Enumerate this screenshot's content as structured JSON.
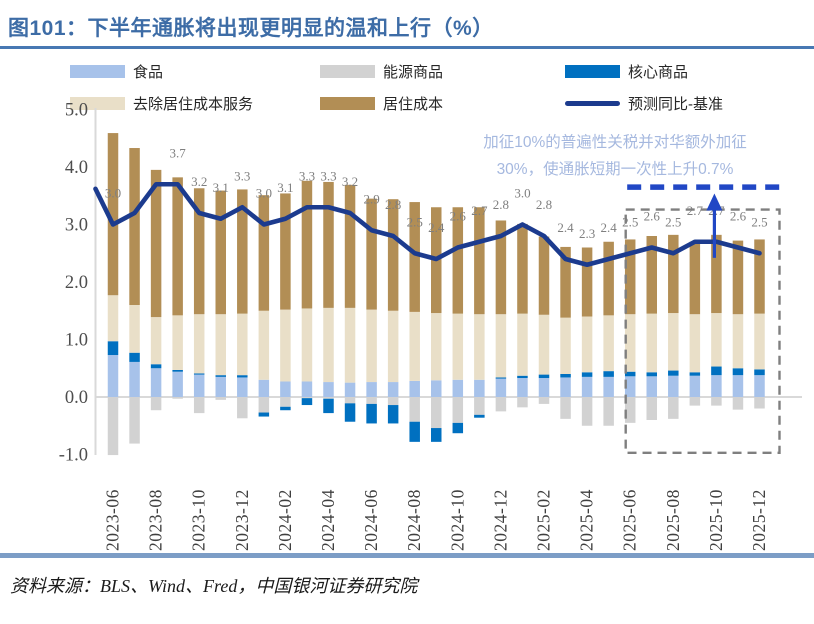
{
  "page": {
    "title": "图101：下半年通胀将出现更明显的温和上行（%）",
    "source": "资料来源：BLS、Wind、Fred，中国银河证券研究院"
  },
  "colors": {
    "title": "#3D6CA6",
    "title_rule": "#4778B3",
    "bottom_band": "#7C9DC6",
    "annotation_text": "#A5B8DF",
    "axis_gray": "#D9D9D9",
    "y_tick_text": "#4D4D4D",
    "x_tick_text": "#3F3F3F",
    "data_label": "#7F7F7F",
    "forecast_line": "#1C3B8E",
    "dashed_blue": "#2147C5",
    "dashed_box": "#7F7F7F"
  },
  "legend": [
    {
      "label": "食品",
      "color": "#A7C2EA",
      "type": "swatch",
      "row": 0,
      "col": 0
    },
    {
      "label": "能源商品",
      "color": "#D2D2D2",
      "type": "swatch",
      "row": 0,
      "col": 1
    },
    {
      "label": "核心商品",
      "color": "#0070C0",
      "type": "swatch",
      "row": 0,
      "col": 2
    },
    {
      "label": "去除居住成本服务",
      "color": "#E9DFC8",
      "type": "swatch",
      "row": 1,
      "col": 0
    },
    {
      "label": "居住成本",
      "color": "#B28E55",
      "type": "swatch",
      "row": 1,
      "col": 1
    },
    {
      "label": "预测同比-基准",
      "color": "#1C3B8E",
      "type": "line",
      "row": 1,
      "col": 2
    }
  ],
  "annotation": {
    "line1": "加征10%的普遍性关税并对华额外加征",
    "line2": "30%，使通胀短期一次性上升0.7%"
  },
  "chart_data": {
    "type": "stacked-bar+line",
    "title": "下半年通胀将出现更明显的温和上行（%）",
    "months": [
      "2023-06",
      "2023-07",
      "2023-08",
      "2023-09",
      "2023-10",
      "2023-11",
      "2023-12",
      "2024-01",
      "2024-02",
      "2024-03",
      "2024-04",
      "2024-05",
      "2024-06",
      "2024-07",
      "2024-08",
      "2024-09",
      "2024-10",
      "2024-11",
      "2024-12",
      "2025-01",
      "2025-02",
      "2025-03",
      "2025-04",
      "2025-05",
      "2025-06",
      "2025-07",
      "2025-08",
      "2025-09",
      "2025-10",
      "2025-11",
      "2025-12"
    ],
    "x_tick_every": 2,
    "ylim": [
      -1.0,
      5.0
    ],
    "y_ticks": [
      5.0,
      4.0,
      3.0,
      2.0,
      1.0,
      0.0,
      -1.0
    ],
    "grid": "zero-line-only",
    "legend_position": "top",
    "series": [
      {
        "name": "食品",
        "color": "#A7C2EA",
        "values": [
          0.73,
          0.61,
          0.5,
          0.44,
          0.39,
          0.35,
          0.34,
          0.3,
          0.27,
          0.27,
          0.26,
          0.25,
          0.26,
          0.26,
          0.28,
          0.29,
          0.3,
          0.3,
          0.32,
          0.33,
          0.33,
          0.34,
          0.35,
          0.35,
          0.36,
          0.36,
          0.37,
          0.37,
          0.38,
          0.38,
          0.38
        ]
      },
      {
        "name": "能源商品",
        "color": "#D2D2D2",
        "values": [
          -1.01,
          -0.81,
          -0.23,
          -0.03,
          -0.28,
          -0.05,
          -0.37,
          -0.27,
          -0.17,
          -0.02,
          -0.03,
          -0.11,
          -0.12,
          -0.14,
          -0.43,
          -0.54,
          -0.45,
          -0.31,
          -0.25,
          -0.18,
          -0.12,
          -0.38,
          -0.5,
          -0.5,
          -0.45,
          -0.4,
          -0.38,
          -0.15,
          -0.15,
          -0.22,
          -0.2
        ]
      },
      {
        "name": "核心商品",
        "color": "#0070C0",
        "values": [
          0.24,
          0.16,
          0.07,
          0.03,
          0.02,
          0.03,
          0.04,
          -0.07,
          -0.06,
          -0.12,
          -0.25,
          -0.32,
          -0.34,
          -0.32,
          -0.35,
          -0.24,
          -0.18,
          -0.05,
          0.02,
          0.04,
          0.06,
          0.06,
          0.08,
          0.1,
          0.08,
          0.07,
          0.09,
          0.06,
          0.15,
          0.12,
          0.1
        ]
      },
      {
        "name": "去除居住成本服务",
        "color": "#E9DFC8",
        "values": [
          0.8,
          0.83,
          0.82,
          0.95,
          1.03,
          1.06,
          1.07,
          1.2,
          1.25,
          1.27,
          1.29,
          1.3,
          1.26,
          1.24,
          1.2,
          1.17,
          1.15,
          1.14,
          1.1,
          1.08,
          1.04,
          0.98,
          0.97,
          0.97,
          1.0,
          1.02,
          1.0,
          1.01,
          0.93,
          0.94,
          0.97
        ]
      },
      {
        "name": "居住成本",
        "color": "#B28E55",
        "values": [
          2.82,
          2.73,
          2.56,
          2.4,
          2.19,
          2.15,
          2.16,
          2.01,
          2.02,
          2.22,
          2.19,
          2.14,
          1.93,
          1.94,
          1.91,
          1.84,
          1.85,
          1.86,
          1.63,
          1.56,
          1.36,
          1.23,
          1.2,
          1.28,
          1.3,
          1.35,
          1.36,
          1.26,
          1.36,
          1.28,
          1.29
        ]
      }
    ],
    "line": {
      "name": "预测同比-基准",
      "color": "#1C3B8E",
      "values": [
        3.0,
        3.2,
        3.7,
        3.7,
        3.2,
        3.1,
        3.3,
        3.0,
        3.1,
        3.3,
        3.3,
        3.2,
        2.9,
        2.8,
        2.5,
        2.4,
        2.6,
        2.7,
        2.8,
        3.0,
        2.8,
        2.4,
        2.3,
        2.4,
        2.5,
        2.6,
        2.5,
        2.7,
        2.7,
        2.6,
        2.5
      ],
      "labels": [
        "3.0",
        "",
        "",
        "3.7",
        "3.2",
        "3.1",
        "3.3",
        "3.0",
        "3.1",
        "3.3",
        "3.3",
        "3.2",
        "2.9",
        "2.8",
        "2.5",
        "2.4",
        "2.6",
        "2.7",
        "2.8",
        "3.0",
        "2.8",
        "2.4",
        "2.3",
        "2.4",
        "2.5",
        "2.6",
        "2.5",
        "2.7",
        "2.7",
        "2.6",
        "2.5"
      ],
      "lead_in_value": 3.62
    },
    "highlight_box": {
      "from": "2025-06",
      "to": "2025-12",
      "top_value": 3.26,
      "bottom_value": -0.97
    },
    "dashed_level_line": {
      "value": 3.65,
      "from": "2025-06",
      "to": "2025-12"
    },
    "arrow": {
      "month": "2025-10",
      "from_value": 2.42,
      "tip_value": 3.54
    }
  }
}
